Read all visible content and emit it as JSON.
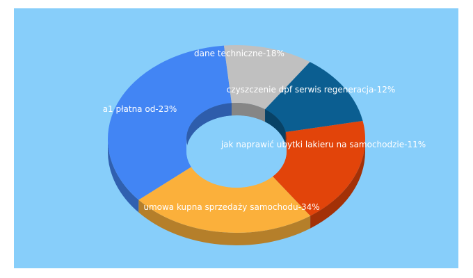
{
  "chart_data": {
    "type": "pie",
    "style": "3d-donut",
    "background": "#87cefa",
    "slices": [
      {
        "label": "umowa kupna sprzedaży samochodu",
        "value": 34,
        "color": "#4285f4"
      },
      {
        "label": "jak naprawić ubytki lakieru na samochodzie",
        "value": 11,
        "color": "#c0c0c0"
      },
      {
        "label": "czyszczenie dpf serwis regeneracja",
        "value": 12,
        "color": "#0b5e91"
      },
      {
        "label": "dane techniczne",
        "value": 18,
        "color": "#e2440a"
      },
      {
        "label": "a1 płatna od",
        "value": 23,
        "color": "#fbb03b"
      }
    ],
    "display_labels": [
      "umowa kupna sprzedaży samochodu-34%",
      "jak naprawić ubytki lakieru na samochodzie-11%",
      "czyszczenie dpf serwis regeneracja-12%",
      "dane techniczne-18%",
      "a1 płatna od-23%"
    ]
  }
}
